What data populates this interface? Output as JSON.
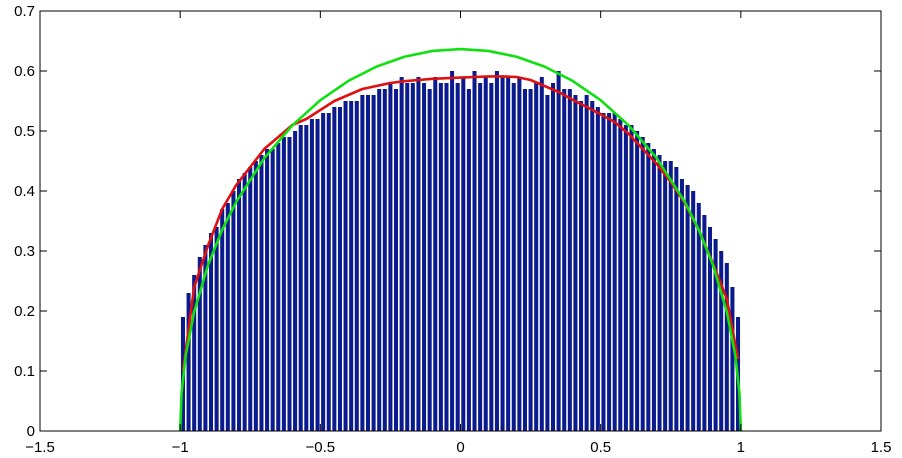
{
  "chart_data": {
    "type": "bar",
    "title": "",
    "xlabel": "",
    "ylabel": "",
    "xlim": [
      -1.5,
      1.5
    ],
    "ylim": [
      0,
      0.7
    ],
    "grid": false,
    "xticks": [
      -1.5,
      -1,
      -0.5,
      0,
      0.5,
      1,
      1.5
    ],
    "xtick_labels": [
      "−1.5",
      "−1",
      "−0.5",
      "0",
      "0.5",
      "1",
      "1.5"
    ],
    "yticks": [
      0,
      0.1,
      0.2,
      0.3,
      0.4,
      0.5,
      0.6,
      0.7
    ],
    "ytick_labels": [
      "0",
      "0.1",
      "0.2",
      "0.3",
      "0.4",
      "0.5",
      "0.6",
      "0.7"
    ],
    "histogram": {
      "color": "#0b1a8c",
      "bin_width": 0.02,
      "bin_centers_start": -0.99,
      "bin_count": 100,
      "values": [
        0.19,
        0.23,
        0.26,
        0.29,
        0.31,
        0.33,
        0.34,
        0.37,
        0.38,
        0.4,
        0.42,
        0.43,
        0.44,
        0.45,
        0.46,
        0.47,
        0.47,
        0.48,
        0.49,
        0.49,
        0.5,
        0.51,
        0.51,
        0.52,
        0.52,
        0.53,
        0.53,
        0.54,
        0.54,
        0.55,
        0.55,
        0.55,
        0.56,
        0.56,
        0.56,
        0.57,
        0.57,
        0.58,
        0.57,
        0.59,
        0.58,
        0.58,
        0.59,
        0.58,
        0.57,
        0.59,
        0.58,
        0.58,
        0.6,
        0.58,
        0.59,
        0.57,
        0.6,
        0.58,
        0.59,
        0.58,
        0.6,
        0.59,
        0.59,
        0.58,
        0.59,
        0.57,
        0.57,
        0.58,
        0.59,
        0.56,
        0.58,
        0.6,
        0.57,
        0.57,
        0.56,
        0.55,
        0.56,
        0.55,
        0.54,
        0.53,
        0.53,
        0.53,
        0.52,
        0.51,
        0.51,
        0.5,
        0.49,
        0.48,
        0.47,
        0.46,
        0.45,
        0.45,
        0.44,
        0.42,
        0.41,
        0.4,
        0.38,
        0.36,
        0.34,
        0.32,
        0.3,
        0.28,
        0.24,
        0.19
      ]
    },
    "series": [
      {
        "color": "#e01010",
        "x": [
          -0.99,
          -0.95,
          -0.9,
          -0.85,
          -0.8,
          -0.75,
          -0.7,
          -0.65,
          -0.6,
          -0.55,
          -0.5,
          -0.45,
          -0.4,
          -0.35,
          -0.3,
          -0.25,
          -0.2,
          -0.15,
          -0.1,
          -0.05,
          0,
          0.05,
          0.1,
          0.15,
          0.2,
          0.25,
          0.3,
          0.35,
          0.4,
          0.45,
          0.5,
          0.55,
          0.6,
          0.65,
          0.7,
          0.75,
          0.8,
          0.85,
          0.9,
          0.95,
          0.99
        ],
        "y": [
          0.1,
          0.24,
          0.31,
          0.37,
          0.41,
          0.44,
          0.47,
          0.49,
          0.51,
          0.52,
          0.535,
          0.55,
          0.56,
          0.57,
          0.575,
          0.58,
          0.583,
          0.585,
          0.587,
          0.588,
          0.589,
          0.59,
          0.591,
          0.591,
          0.59,
          0.585,
          0.575,
          0.565,
          0.552,
          0.54,
          0.528,
          0.515,
          0.495,
          0.47,
          0.445,
          0.415,
          0.38,
          0.335,
          0.28,
          0.22,
          0.12
        ]
      },
      {
        "color": "#10e010",
        "curve": "semicircle",
        "x": [
          -1,
          -0.995,
          -0.98,
          -0.95,
          -0.9,
          -0.85,
          -0.8,
          -0.7,
          -0.6,
          -0.5,
          -0.4,
          -0.3,
          -0.2,
          -0.1,
          0,
          0.1,
          0.2,
          0.3,
          0.4,
          0.5,
          0.6,
          0.7,
          0.8,
          0.85,
          0.9,
          0.95,
          0.98,
          0.995,
          1
        ],
        "y": [
          0,
          0.0636,
          0.1267,
          0.1988,
          0.2775,
          0.3354,
          0.382,
          0.4547,
          0.5093,
          0.5513,
          0.5835,
          0.6073,
          0.6237,
          0.6334,
          0.6366,
          0.6334,
          0.6237,
          0.6073,
          0.5835,
          0.5513,
          0.5093,
          0.4547,
          0.382,
          0.3354,
          0.2775,
          0.1988,
          0.1267,
          0.0636,
          0
        ]
      }
    ]
  }
}
